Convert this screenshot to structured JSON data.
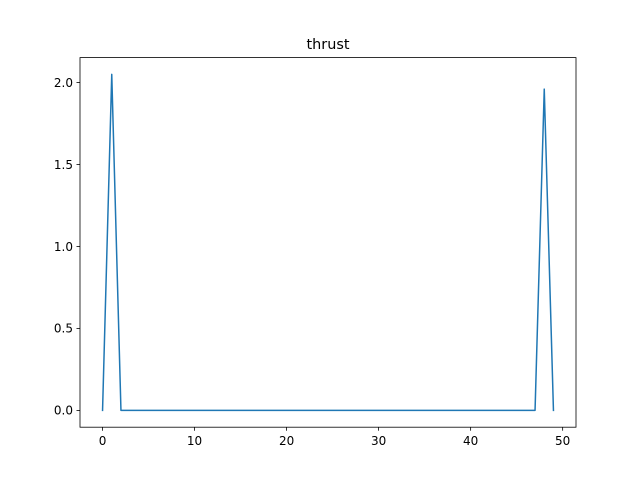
{
  "chart_data": {
    "type": "line",
    "title": "thrust",
    "xlabel": "",
    "ylabel": "",
    "xlim": [
      -2.45,
      51.45
    ],
    "ylim": [
      -0.1025,
      2.1525
    ],
    "xticks": [
      0,
      10,
      20,
      30,
      40,
      50
    ],
    "xtick_labels": [
      "0",
      "10",
      "20",
      "30",
      "40",
      "50"
    ],
    "yticks": [
      0.0,
      0.5,
      1.0,
      1.5,
      2.0
    ],
    "ytick_labels": [
      "0.0",
      "0.5",
      "1.0",
      "1.5",
      "2.0"
    ],
    "grid": false,
    "legend": "none",
    "series": [
      {
        "color": "#1f77b4",
        "x": [
          0,
          1,
          2,
          3,
          4,
          5,
          6,
          7,
          8,
          9,
          10,
          11,
          12,
          13,
          14,
          15,
          16,
          17,
          18,
          19,
          20,
          21,
          22,
          23,
          24,
          25,
          26,
          27,
          28,
          29,
          30,
          31,
          32,
          33,
          34,
          35,
          36,
          37,
          38,
          39,
          40,
          41,
          42,
          43,
          44,
          45,
          46,
          47,
          48,
          49
        ],
        "y": [
          0,
          2.05,
          0,
          0,
          0,
          0,
          0,
          0,
          0,
          0,
          0,
          0,
          0,
          0,
          0,
          0,
          0,
          0,
          0,
          0,
          0,
          0,
          0,
          0,
          0,
          0,
          0,
          0,
          0,
          0,
          0,
          0,
          0,
          0,
          0,
          0,
          0,
          0,
          0,
          0,
          0,
          0,
          0,
          0,
          0,
          0,
          0,
          0,
          1.96,
          0
        ]
      }
    ]
  }
}
